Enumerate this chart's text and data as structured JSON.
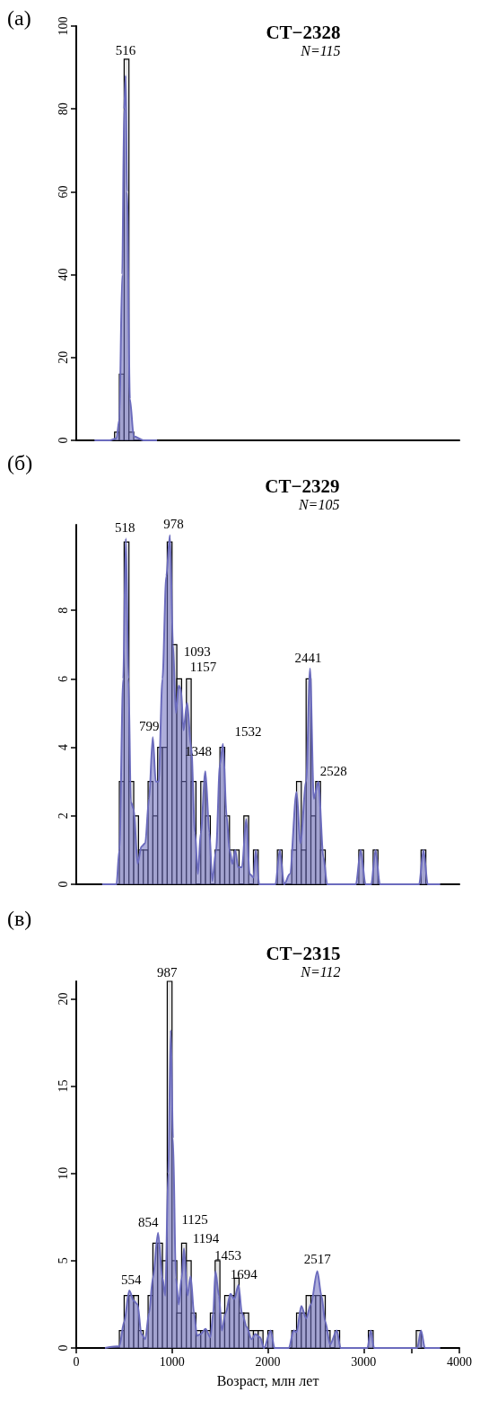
{
  "chart_data": [
    {
      "type": "histogram",
      "title": "СТ−2328",
      "subtitle": "N=115",
      "xlim": [
        0,
        4000
      ],
      "ylim": [
        0,
        100
      ],
      "yticks": [
        0,
        20,
        40,
        60,
        80,
        100
      ],
      "tick_labels": "y",
      "series": [
        {
          "type": "histogram",
          "color": "#e6e6e6",
          "bins": [
            400,
            450,
            500,
            550,
            600
          ],
          "values": [
            2,
            16,
            92,
            2
          ]
        },
        {
          "type": "area",
          "color": "#6b6bbd",
          "x": [
            190,
            350,
            420,
            450,
            480,
            500,
            516,
            530,
            560,
            600,
            700,
            843
          ],
          "values": [
            0,
            0,
            0.5,
            5,
            40,
            80,
            88,
            60,
            10,
            1,
            0,
            0
          ]
        }
      ],
      "annotations": [
        "(а)",
        {
          "text": "516",
          "x": 516,
          "y": 88
        }
      ]
    },
    {
      "type": "histogram",
      "title": "СТ−2329",
      "subtitle": "N=105",
      "xlim": [
        0,
        4000
      ],
      "ylim": [
        0,
        10.5
      ],
      "yticks": [
        0,
        2,
        4,
        6,
        8
      ],
      "tick_labels": "y",
      "series": [
        {
          "type": "histogram",
          "color": "#e6e6e6",
          "bins": [
            450,
            500,
            550,
            600,
            650,
            700,
            750,
            800,
            850,
            900,
            950,
            1000,
            1050,
            1100,
            1150,
            1200,
            1250,
            1300,
            1350,
            1400,
            1450,
            1500,
            1550,
            1600,
            1650,
            1700,
            1750,
            1800,
            1850,
            1900,
            1950,
            2000,
            2050,
            2100,
            2150,
            2200,
            2250,
            2300,
            2350,
            2400,
            2450,
            2500,
            2550,
            2600,
            2650,
            2700,
            2750,
            2800,
            2850,
            2900,
            2950,
            3000,
            3050,
            3100,
            3150,
            3200,
            3250,
            3300,
            3350,
            3400,
            3450,
            3500,
            3550,
            3600,
            3650
          ],
          "values": [
            3,
            10,
            3,
            2,
            1,
            1,
            3,
            2,
            4,
            4,
            10,
            7,
            6,
            3,
            6,
            3,
            0,
            3,
            2,
            0,
            1,
            4,
            2,
            1,
            1,
            0,
            2,
            0,
            1,
            0,
            0,
            0,
            0,
            1,
            0,
            0,
            1,
            3,
            1,
            6,
            2,
            3,
            1,
            0,
            0,
            0,
            0,
            0,
            0,
            0,
            1,
            0,
            0,
            1,
            0,
            0,
            0,
            0,
            0,
            0,
            0,
            0,
            0,
            1
          ]
        },
        {
          "type": "area",
          "color": "#6b6bbd",
          "x": [
            270,
            420,
            450,
            490,
            518,
            545,
            570,
            600,
            640,
            680,
            720,
            760,
            799,
            830,
            860,
            900,
            940,
            978,
            1010,
            1040,
            1070,
            1093,
            1120,
            1157,
            1200,
            1240,
            1270,
            1300,
            1348,
            1390,
            1420,
            1460,
            1500,
            1532,
            1570,
            1600,
            1630,
            1660,
            1690,
            1730,
            1775,
            1810,
            1850,
            1875,
            1910,
            2080,
            2125,
            2170,
            2230,
            2300,
            2340,
            2400,
            2441,
            2480,
            2528,
            2580,
            2620,
            2920,
            2970,
            3020,
            3080,
            3125,
            3170,
            3580,
            3625,
            3670,
            3800
          ],
          "values": [
            0,
            0,
            1,
            6,
            10.1,
            6,
            2.4,
            2.2,
            0.6,
            1.1,
            1.2,
            2.5,
            4.3,
            3,
            3,
            6,
            9,
            10.2,
            7,
            5,
            5.8,
            5.7,
            4.5,
            5.3,
            4,
            1.5,
            0.3,
            1.5,
            3.3,
            1.5,
            0.1,
            1,
            3.5,
            4.1,
            2,
            1,
            0.6,
            1,
            0.5,
            0.5,
            1.9,
            0.3,
            0.2,
            1,
            0,
            0,
            1,
            0,
            0.3,
            2.7,
            1.2,
            3,
            6.3,
            2.5,
            3,
            0.8,
            0,
            0,
            1,
            0,
            0,
            1,
            0,
            0,
            1,
            0,
            0
          ]
        }
      ],
      "annotations": [
        "(б)",
        {
          "text": "518",
          "x": 518,
          "y": 10.1
        },
        {
          "text": "978",
          "x": 978,
          "y": 10.2
        },
        {
          "text": "1093",
          "x": 1093,
          "y": 5.7
        },
        {
          "text": "1157",
          "x": 1157,
          "y": 5.3
        },
        {
          "text": "799",
          "x": 799,
          "y": 4.3
        },
        {
          "text": "1532",
          "x": 1532,
          "y": 4.1
        },
        {
          "text": "1348",
          "x": 1348,
          "y": 3.3
        },
        {
          "text": "2441",
          "x": 2441,
          "y": 6.3
        },
        {
          "text": "2528",
          "x": 2528,
          "y": 3
        }
      ]
    },
    {
      "type": "histogram",
      "title": "СТ−2315",
      "subtitle": "N=112",
      "xlabel": "Возраст, млн лет",
      "xlim": [
        0,
        4000
      ],
      "xticks": [
        0,
        1000,
        2000,
        3000,
        {
          "value": 3500,
          "label": null
        },
        4000
      ],
      "ylim": [
        0,
        21
      ],
      "yticks": [
        0,
        5,
        10,
        15,
        20
      ],
      "series": [
        {
          "type": "histogram",
          "color": "#e6e6e6",
          "bins": [
            450,
            500,
            550,
            600,
            650,
            700,
            750,
            800,
            850,
            900,
            950,
            1000,
            1050,
            1100,
            1150,
            1200,
            1250,
            1300,
            1350,
            1400,
            1450,
            1500,
            1550,
            1600,
            1650,
            1700,
            1750,
            1800,
            1850,
            1900,
            1950,
            2000,
            2050,
            2100,
            2150,
            2200,
            2250,
            2300,
            2350,
            2400,
            2450,
            2500,
            2550,
            2600,
            2650,
            2700,
            2750,
            2800,
            2850,
            2900,
            2950,
            3000,
            3050,
            3100,
            3150,
            3200,
            3250,
            3300,
            3350,
            3400,
            3450,
            3500,
            3550,
            3600
          ],
          "values": [
            1,
            3,
            3,
            3,
            1,
            0,
            3,
            6,
            6,
            5,
            21,
            5,
            2,
            6,
            5,
            2,
            1,
            1,
            1,
            2,
            5,
            2,
            3,
            3,
            4,
            2,
            2,
            1,
            1,
            1,
            0,
            1,
            0,
            0,
            0,
            0,
            1,
            2,
            2,
            3,
            3,
            3,
            3,
            1,
            0,
            1,
            0,
            0,
            0,
            0,
            0,
            0,
            1,
            0,
            0,
            0,
            0,
            0,
            0,
            0,
            0,
            0,
            1
          ]
        },
        {
          "type": "area",
          "color": "#6b6bbd",
          "x": [
            300,
            450,
            500,
            554,
            600,
            640,
            680,
            720,
            760,
            800,
            854,
            900,
            930,
            960,
            987,
            1010,
            1040,
            1070,
            1100,
            1125,
            1160,
            1194,
            1230,
            1260,
            1300,
            1350,
            1400,
            1430,
            1453,
            1490,
            1520,
            1560,
            1610,
            1650,
            1694,
            1730,
            1780,
            1830,
            1870,
            1920,
            1960,
            2030,
            2070,
            2220,
            2270,
            2300,
            2350,
            2400,
            2450,
            2517,
            2560,
            2600,
            2650,
            2720,
            2760,
            3040,
            3075,
            3110,
            3560,
            3600,
            3640,
            3800
          ],
          "values": [
            0,
            0.1,
            1.5,
            3.3,
            2.7,
            2.5,
            0.8,
            0.5,
            2,
            4,
            6.6,
            4,
            3,
            10,
            18.2,
            12,
            4,
            2.5,
            4,
            5.7,
            3,
            4.1,
            2,
            0.7,
            0.8,
            1.1,
            0.6,
            2,
            4.4,
            3,
            1,
            2,
            3.1,
            2.8,
            3.6,
            2,
            1.2,
            0.5,
            0.8,
            0.6,
            0,
            1,
            0,
            0,
            1,
            0.9,
            2.4,
            1.7,
            2.5,
            4.4,
            3,
            1.5,
            0.2,
            1,
            0,
            0,
            1,
            0,
            0,
            1,
            0,
            0
          ]
        }
      ],
      "annotations": [
        "(в)",
        {
          "text": "987",
          "x": 987,
          "y": 21
        },
        {
          "text": "854",
          "x": 854,
          "y": 6.6
        },
        {
          "text": "1125",
          "x": 1125,
          "y": 5.7
        },
        {
          "text": "1194",
          "x": 1194,
          "y": 4.1
        },
        {
          "text": "1453",
          "x": 1453,
          "y": 4.4
        },
        {
          "text": "1694",
          "x": 1694,
          "y": 3.6
        },
        {
          "text": "554",
          "x": 554,
          "y": 3.3
        },
        {
          "text": "2517",
          "x": 2517,
          "y": 4.4
        }
      ]
    }
  ]
}
